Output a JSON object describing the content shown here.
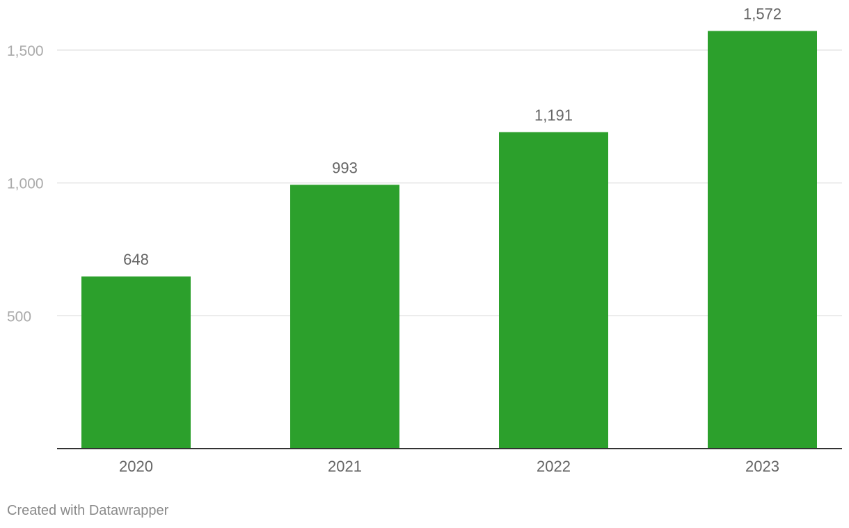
{
  "chart_data": {
    "type": "bar",
    "categories": [
      "2020",
      "2021",
      "2022",
      "2023"
    ],
    "values": [
      648,
      993,
      1191,
      1572
    ],
    "value_labels": [
      "648",
      "993",
      "1,191",
      "1,572"
    ],
    "ylim": [
      0,
      1600
    ],
    "yticks": [
      500,
      1000,
      1500
    ],
    "ytick_labels": [
      "500",
      "1,000",
      "1,500"
    ],
    "grid": true,
    "title": "",
    "xlabel": "",
    "ylabel": ""
  },
  "colors": {
    "bar": "#2ca02c",
    "grid": "#e4e4e4",
    "axis": "#333333",
    "tick_text": "#aaaaaa",
    "label_text": "#666666"
  },
  "footer": {
    "credit": "Created with Datawrapper"
  }
}
